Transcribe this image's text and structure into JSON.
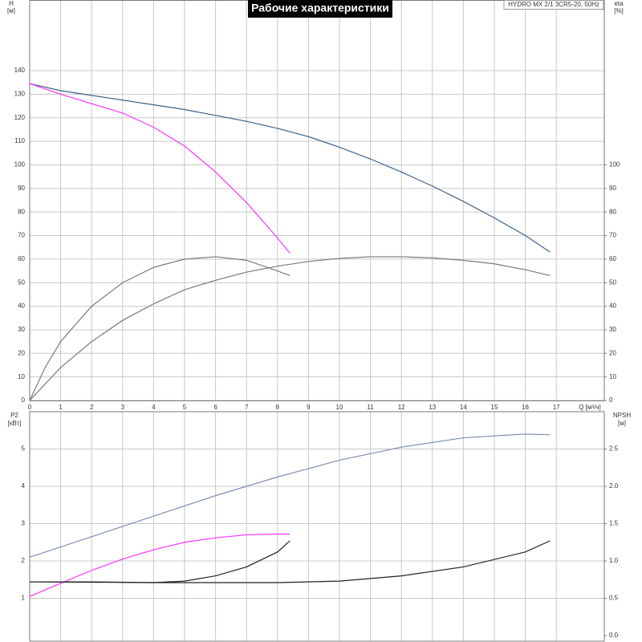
{
  "chart_data": [
    {
      "type": "line",
      "title": "Рабочие характеристики",
      "annotation": "HYDRO MX 2/1 3CR5-20, 50Hz",
      "ylabel": "H",
      "yunit": "[м]",
      "y2label": "eta",
      "y2unit": "[%]",
      "xlabel": "Q [м³/ч]",
      "xlim": [
        0,
        18.55
      ],
      "xticks": [
        0,
        1,
        2,
        3,
        4,
        5,
        6,
        7,
        8,
        9,
        10,
        11,
        12,
        13,
        14,
        15,
        16,
        17
      ],
      "ylim": [
        0,
        170
      ],
      "yticks": [
        0,
        10,
        20,
        30,
        40,
        50,
        60,
        70,
        80,
        90,
        100,
        110,
        120,
        130,
        140
      ],
      "y2lim": [
        0,
        170
      ],
      "y2ticks": [
        0,
        10,
        20,
        30,
        40,
        50,
        60,
        70,
        80,
        90,
        100
      ],
      "grid": true,
      "series": [
        {
          "color": "#3b6189",
          "x": [
            0,
            1,
            2,
            3,
            4,
            5,
            6,
            7,
            8,
            9,
            10,
            11,
            12,
            13,
            14,
            15,
            16,
            16.8
          ],
          "values": [
            134.5,
            131.5,
            129.5,
            127.5,
            125.5,
            123.5,
            121,
            118.5,
            115.5,
            112,
            107.5,
            102.5,
            97,
            91,
            84.5,
            77.5,
            70,
            63
          ]
        },
        {
          "color": "#ff33ff",
          "x": [
            0,
            1,
            2,
            3,
            4,
            5,
            6,
            7,
            8,
            8.4
          ],
          "values": [
            134.5,
            130,
            126,
            122,
            116,
            108,
            97,
            84,
            69,
            62.5
          ]
        },
        {
          "color": "#7a7a7a",
          "axis": "y2",
          "x": [
            0,
            0.5,
            1,
            2,
            3,
            4,
            5,
            6,
            7,
            8,
            8.4
          ],
          "values": [
            0,
            14,
            25,
            40,
            50,
            56.5,
            60,
            61,
            59.5,
            55,
            53
          ]
        },
        {
          "color": "#7a7a7a",
          "axis": "y2",
          "x": [
            0,
            1,
            2,
            3,
            4,
            5,
            6,
            7,
            8,
            9,
            10,
            11,
            12,
            13,
            14,
            15,
            16,
            16.8
          ],
          "values": [
            0,
            14,
            25,
            34,
            41,
            47,
            51,
            54.5,
            57,
            59,
            60.3,
            61,
            61,
            60.5,
            59.5,
            58,
            55.5,
            53
          ]
        }
      ]
    },
    {
      "type": "line",
      "ylabel": "P2",
      "yunit": "[кВт]",
      "y2label": "NPSH",
      "y2unit": "[м]",
      "xlim": [
        0,
        18.55
      ],
      "ylim": [
        0,
        6
      ],
      "yticks": [
        1,
        2,
        3,
        4,
        5
      ],
      "y2lim": [
        0,
        3
      ],
      "y2ticks": [
        {
          "value": 0,
          "label": "0.0"
        },
        0.5,
        {
          "value": 1,
          "label": "1.0"
        },
        1.5,
        {
          "value": 2,
          "label": "2.0"
        },
        2.5
      ],
      "grid": true,
      "series": [
        {
          "color": "#7d8fb0",
          "x": [
            0,
            2,
            4,
            6,
            8,
            10,
            12,
            14,
            16,
            16.8
          ],
          "values": [
            2.1,
            2.65,
            3.2,
            3.75,
            4.25,
            4.7,
            5.05,
            5.3,
            5.4,
            5.38
          ]
        },
        {
          "color": "#ff33ff",
          "x": [
            0,
            1,
            2,
            3,
            4,
            5,
            6,
            7,
            8,
            8.4
          ],
          "values": [
            1.05,
            1.4,
            1.75,
            2.05,
            2.3,
            2.5,
            2.62,
            2.7,
            2.72,
            2.72
          ]
        },
        {
          "color": "#222222",
          "axis": "y2",
          "x": [
            0,
            2,
            4,
            5,
            6,
            7,
            8,
            8.4
          ],
          "values": [
            0.72,
            0.72,
            0.71,
            0.73,
            0.8,
            0.92,
            1.12,
            1.27
          ]
        },
        {
          "color": "#222222",
          "axis": "y2",
          "x": [
            0,
            4,
            8,
            10,
            12,
            14,
            16,
            16.8
          ],
          "values": [
            0.72,
            0.71,
            0.71,
            0.73,
            0.8,
            0.92,
            1.12,
            1.27
          ]
        }
      ]
    }
  ]
}
